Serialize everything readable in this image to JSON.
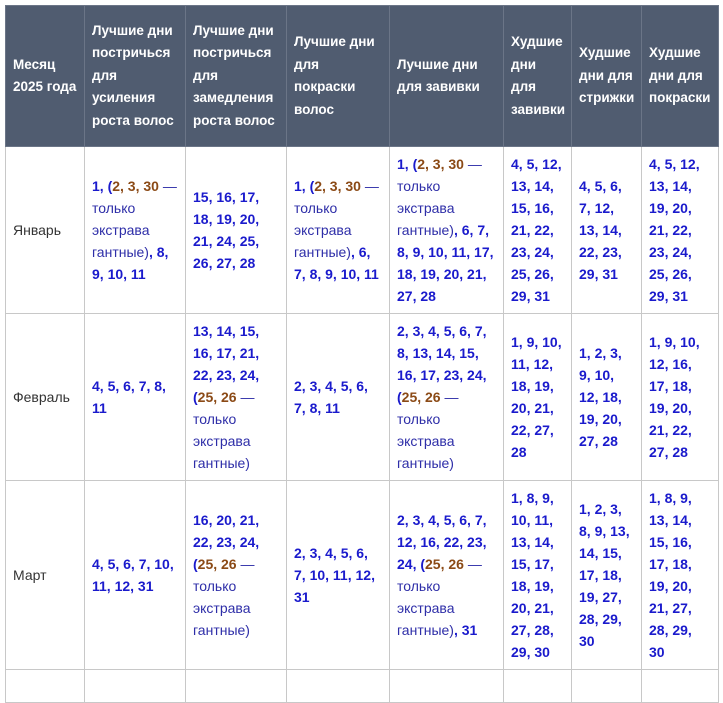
{
  "headers": [
    "Месяц 2025 года",
    "Лучшие дни постричься для усиления роста волос",
    "Лучшие дни постричься для замедления роста волос",
    "Лучшие дни для покраски волос",
    "Лучшие дни для завивки",
    "Худшие дни для завивки",
    "Худшие дни для стрижки",
    "Худшие дни для покраски"
  ],
  "rows": [
    {
      "month": "Январь",
      "cells": [
        [
          {
            "s": "b",
            "t": "1, ("
          },
          {
            "s": "o",
            "t": "2, 3, 30"
          },
          {
            "s": "n",
            "t": " — только экстрава гантные)"
          },
          {
            "s": "b",
            "t": ", 8, 9, 10, 11"
          }
        ],
        [
          {
            "s": "b",
            "t": "15, 16, 17, 18, 19, 20, 21, 24, 25, 26, 27, 28"
          }
        ],
        [
          {
            "s": "b",
            "t": "1, ("
          },
          {
            "s": "o",
            "t": "2, 3, 30"
          },
          {
            "s": "n",
            "t": " — только экстрава гантные)"
          },
          {
            "s": "b",
            "t": ", 6, 7, 8, 9, 10, 11"
          }
        ],
        [
          {
            "s": "b",
            "t": "1, ("
          },
          {
            "s": "o",
            "t": "2, 3, 30"
          },
          {
            "s": "n",
            "t": " — только экстрава гантные)"
          },
          {
            "s": "b",
            "t": ", 6, 7, 8, 9, 10, 11, 17, 18, 19, 20, 21,  27, 28"
          }
        ],
        [
          {
            "s": "b",
            "t": "4, 5, 12, 13, 14, 15, 16, 21, 22, 23, 24, 25, 26, 29, 31"
          }
        ],
        [
          {
            "s": "b",
            "t": "4, 5, 6, 7, 12, 13, 14, 22, 23, 29, 31"
          }
        ],
        [
          {
            "s": "b",
            "t": "4, 5, 12, 13, 14, 19, 20, 21, 22, 23, 24, 25, 26, 29, 31"
          }
        ]
      ]
    },
    {
      "month": "Февраль",
      "cells": [
        [
          {
            "s": "b",
            "t": "4, 5, 6, 7, 8, 11"
          }
        ],
        [
          {
            "s": "b",
            "t": "13, 14, 15, 16, 17, 21, 22, 23, 24, ("
          },
          {
            "s": "o",
            "t": "25, 26"
          },
          {
            "s": "n",
            "t": " — только экстрава гантные)"
          }
        ],
        [
          {
            "s": "b",
            "t": "2, 3, 4, 5, 6, 7, 8, 11"
          }
        ],
        [
          {
            "s": "b",
            "t": "2, 3, 4, 5, 6, 7, 8, 13, 14, 15, 16, 17, 23, 24, ("
          },
          {
            "s": "o",
            "t": "25, 26"
          },
          {
            "s": "n",
            "t": " — только экстрава гантные)"
          }
        ],
        [
          {
            "s": "b",
            "t": "1, 9, 10, 11, 12, 18, 19, 20, 21, 22, 27, 28"
          }
        ],
        [
          {
            "s": "b",
            "t": "1, 2, 3, 9, 10, 12, 18, 19, 20, 27, 28"
          }
        ],
        [
          {
            "s": "b",
            "t": "1, 9, 10, 12, 16, 17, 18, 19, 20, 21, 22, 27, 28"
          }
        ]
      ]
    },
    {
      "month": "Март",
      "cells": [
        [
          {
            "s": "b",
            "t": "4, 5, 6, 7, 10, 11, 12, 31"
          }
        ],
        [
          {
            "s": "b",
            "t": "16, 20, 21, 22, 23, 24, ("
          },
          {
            "s": "o",
            "t": "25, 26"
          },
          {
            "s": "n",
            "t": " — только экстрава гантные)"
          }
        ],
        [
          {
            "s": "b",
            "t": "2, 3, 4, 5, 6, 7, 10, 11, 12, 31"
          }
        ],
        [
          {
            "s": "b",
            "t": "2, 3, 4, 5, 6, 7, 12, 16, 22, 23, 24, ("
          },
          {
            "s": "o",
            "t": "25, 26"
          },
          {
            "s": "n",
            "t": " — только экстрава гантные)"
          },
          {
            "s": "b",
            "t": ", 31"
          }
        ],
        [
          {
            "s": "b",
            "t": "1, 8, 9, 10, 11, 13, 14, 15, 17, 18, 19, 20, 21, 27, 28, 29, 30"
          }
        ],
        [
          {
            "s": "b",
            "t": "1, 2, 3, 8, 9, 13, 14, 15, 17, 18, 19, 27, 28, 29, 30"
          }
        ],
        [
          {
            "s": "b",
            "t": "1, 8, 9, 13, 14, 15, 16, 17, 18, 19, 20, 21,  27, 28, 29, 30"
          }
        ]
      ]
    }
  ],
  "colors": {
    "header_bg": "#505c70",
    "day": "#1a1acc",
    "extravagant_day": "#8b4a16",
    "note": "#2e2ea8"
  }
}
